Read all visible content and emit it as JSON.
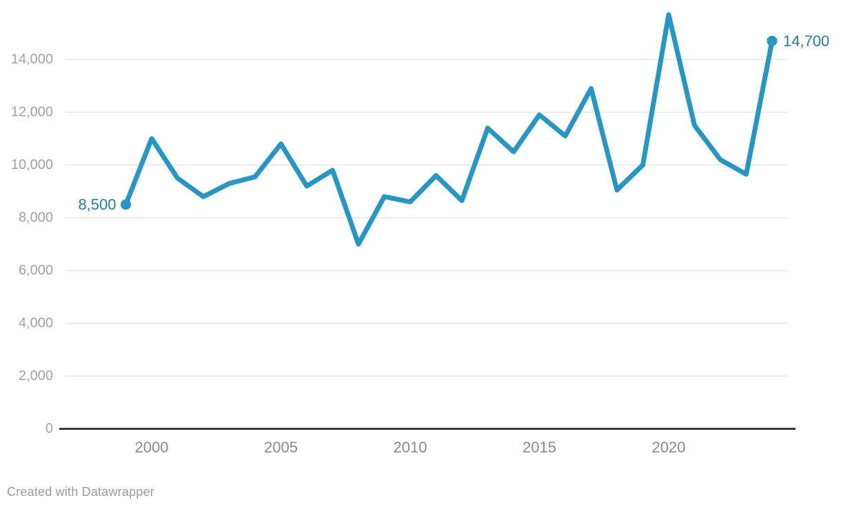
{
  "chart_data": {
    "type": "line",
    "x": [
      1999,
      2000,
      2001,
      2002,
      2003,
      2004,
      2005,
      2006,
      2007,
      2008,
      2009,
      2010,
      2011,
      2012,
      2013,
      2014,
      2015,
      2016,
      2017,
      2018,
      2019,
      2020,
      2021,
      2022,
      2023,
      2024
    ],
    "values": [
      8500,
      11000,
      9500,
      8800,
      9300,
      9550,
      10800,
      9200,
      9800,
      7000,
      8800,
      8600,
      9600,
      8650,
      11400,
      10500,
      11900,
      11100,
      12900,
      9050,
      10000,
      15700,
      11500,
      10200,
      9650,
      14700
    ],
    "title": "",
    "xlabel": "",
    "ylabel": "",
    "ylim": [
      0,
      16000
    ],
    "grid": true,
    "legend": "none",
    "first_point_label": "8,500",
    "last_point_label": "14,700",
    "yticks": [
      {
        "value": 0,
        "label": "0"
      },
      {
        "value": 2000,
        "label": "2,000"
      },
      {
        "value": 4000,
        "label": "4,000"
      },
      {
        "value": 6000,
        "label": "6,000"
      },
      {
        "value": 8000,
        "label": "8,000"
      },
      {
        "value": 10000,
        "label": "10,000"
      },
      {
        "value": 12000,
        "label": "12,000"
      },
      {
        "value": 14000,
        "label": "14,000"
      }
    ],
    "xticks": [
      {
        "value": 2000,
        "label": "2000"
      },
      {
        "value": 2005,
        "label": "2005"
      },
      {
        "value": 2010,
        "label": "2010"
      },
      {
        "value": 2015,
        "label": "2015"
      },
      {
        "value": 2020,
        "label": "2020"
      }
    ],
    "colors": {
      "line": "#2397c8",
      "point": "#2397c8",
      "value_label": "#1d81a2",
      "grid": "#e9e9e9",
      "axis": "#161616",
      "y_tick_text": "#a2a2a2",
      "x_tick_text": "#8a8a8a",
      "attribution_text": "#9b9b9b"
    }
  },
  "attribution": {
    "text": "Created with Datawrapper"
  }
}
